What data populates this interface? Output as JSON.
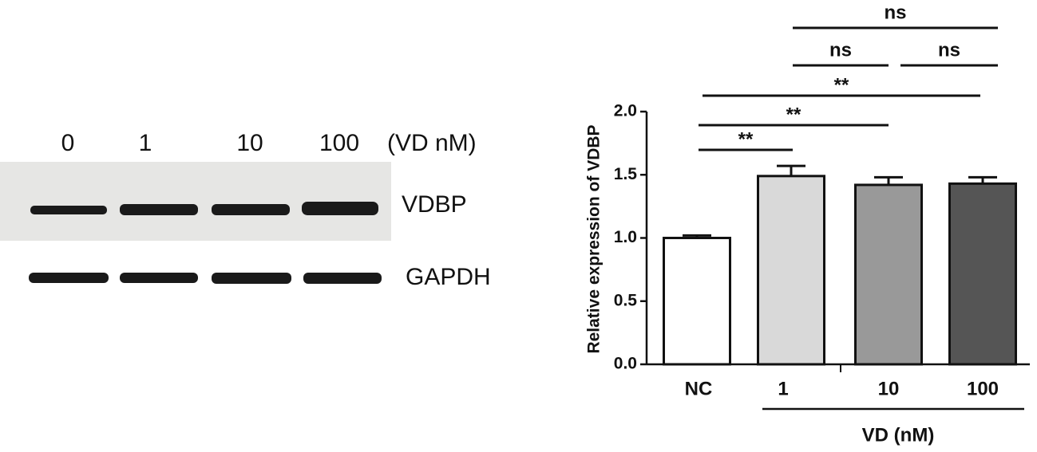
{
  "blot": {
    "lanes": [
      "0",
      "1",
      "10",
      "100"
    ],
    "unit": "(VD nM)",
    "bands": [
      "VDBP",
      "GAPDH"
    ]
  },
  "chart_data": {
    "type": "bar",
    "y_label": "Relative expression of VDBP",
    "categories": [
      "NC",
      "1",
      "10",
      "100"
    ],
    "values": [
      1.0,
      1.49,
      1.42,
      1.43
    ],
    "errors": [
      0.02,
      0.08,
      0.06,
      0.05
    ],
    "colors": [
      "#ffffff",
      "#d9d9d9",
      "#999999",
      "#555555"
    ],
    "group_label": "VD (nM)",
    "ylim": [
      0,
      2
    ],
    "yticks": [
      {
        "value": 0,
        "label": "0.0"
      },
      0.5,
      {
        "value": 1,
        "label": "1.0"
      },
      1.5,
      {
        "value": 2,
        "label": "2.0"
      }
    ],
    "comparisons": [
      {
        "groups": [
          0,
          1
        ],
        "label": "**"
      },
      {
        "groups": [
          0,
          2
        ],
        "label": "**"
      },
      {
        "groups": [
          0,
          3
        ],
        "label": "**"
      },
      {
        "groups": [
          1,
          2
        ],
        "label": "ns"
      },
      {
        "groups": [
          2,
          3
        ],
        "label": "ns"
      },
      {
        "groups": [
          1,
          3
        ],
        "label": "ns"
      }
    ]
  }
}
